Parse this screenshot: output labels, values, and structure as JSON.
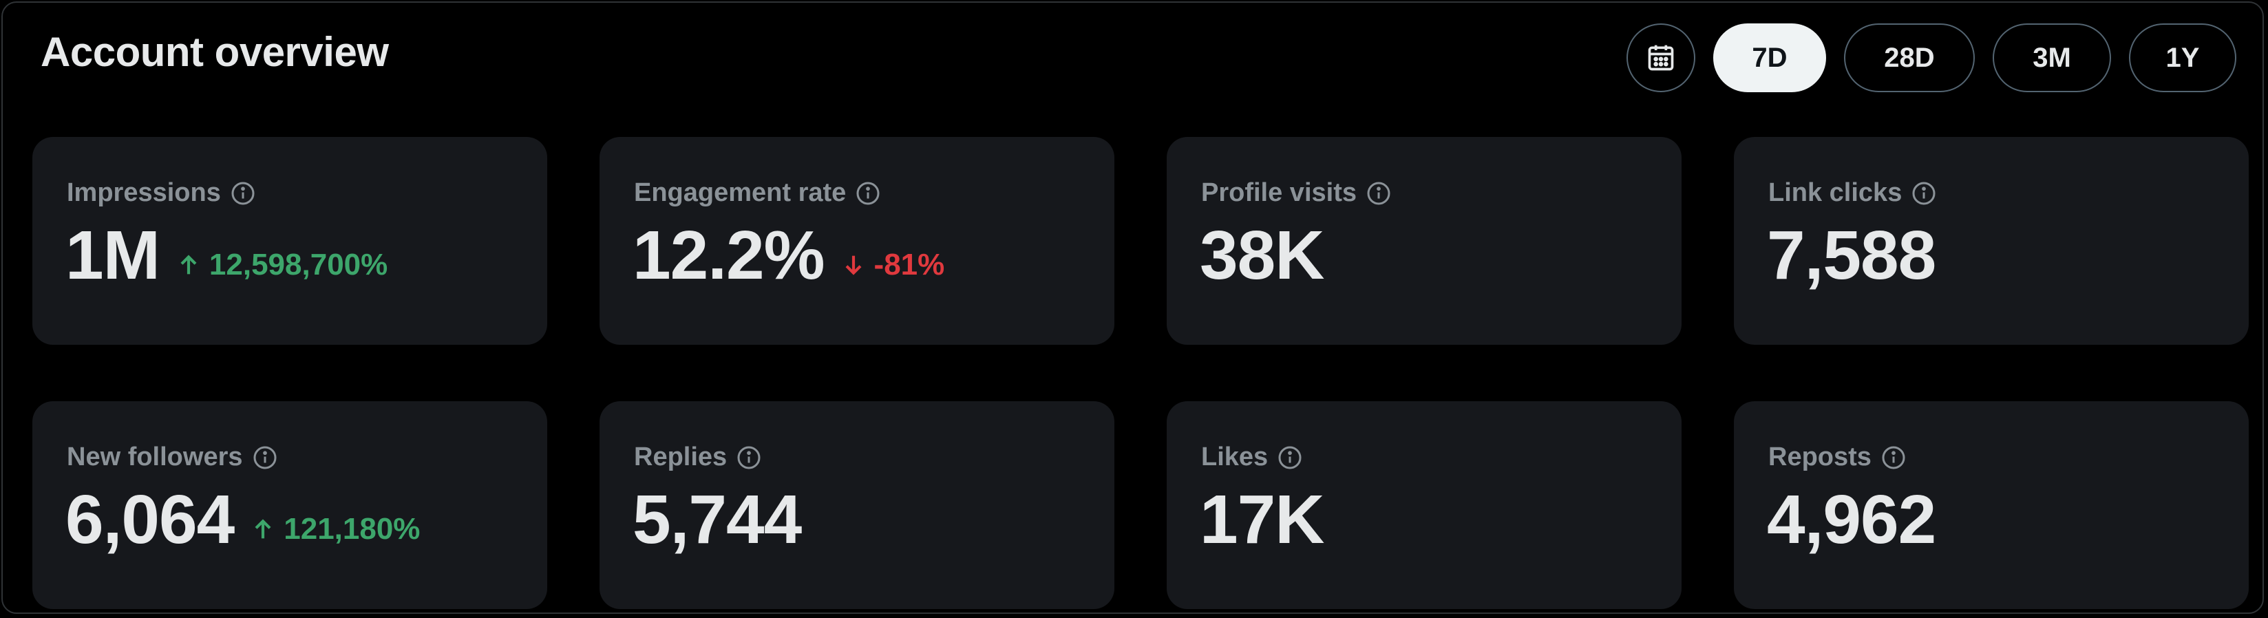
{
  "header": {
    "title": "Account overview"
  },
  "range": {
    "calendar_icon": "calendar-icon",
    "options": [
      "7D",
      "28D",
      "3M",
      "1Y"
    ],
    "selected": "7D"
  },
  "metrics": [
    {
      "label": "Impressions",
      "value": "1M",
      "delta": "12,598,700%",
      "direction": "up"
    },
    {
      "label": "Engagement rate",
      "value": "12.2%",
      "delta": "-81%",
      "direction": "down"
    },
    {
      "label": "Profile visits",
      "value": "38K"
    },
    {
      "label": "Link clicks",
      "value": "7,588"
    },
    {
      "label": "New followers",
      "value": "6,064",
      "delta": "121,180%",
      "direction": "up"
    },
    {
      "label": "Replies",
      "value": "5,744"
    },
    {
      "label": "Likes",
      "value": "17K"
    },
    {
      "label": "Reposts",
      "value": "4,962"
    }
  ],
  "colors": {
    "up": "#3da66b",
    "down": "#e0393e",
    "card_bg": "#16181c"
  }
}
